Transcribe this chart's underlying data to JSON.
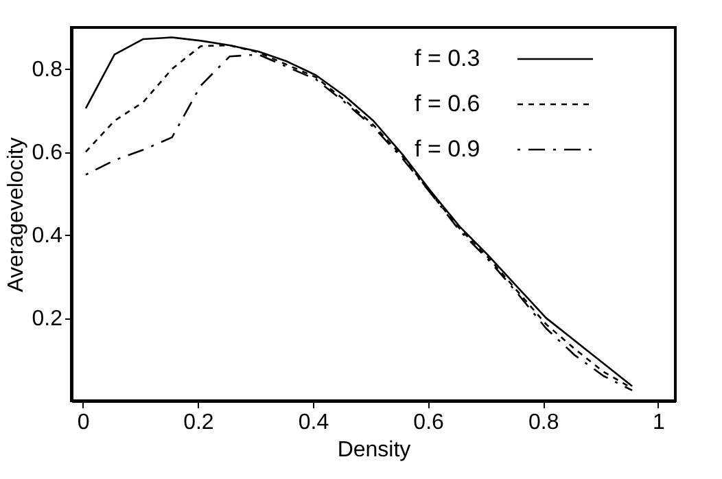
{
  "chart_data": {
    "type": "line",
    "xlabel": "Density",
    "ylabel": "Averagevelocity",
    "x": [
      0.005,
      0.055,
      0.105,
      0.155,
      0.205,
      0.255,
      0.305,
      0.355,
      0.405,
      0.455,
      0.505,
      0.555,
      0.605,
      0.655,
      0.705,
      0.755,
      0.805,
      0.855,
      0.905,
      0.955
    ],
    "series": [
      {
        "name": "f = 0.3",
        "color": "#000000",
        "line_style": "solid",
        "values": [
          0.705,
          0.835,
          0.872,
          0.876,
          0.868,
          0.857,
          0.842,
          0.818,
          0.785,
          0.735,
          0.675,
          0.595,
          0.505,
          0.42,
          0.35,
          0.275,
          0.2,
          0.145,
          0.09,
          0.035
        ]
      },
      {
        "name": "f = 0.6",
        "color": "#000000",
        "line_style": "dashed",
        "values": [
          0.6,
          0.675,
          0.72,
          0.8,
          0.855,
          0.857,
          0.84,
          0.81,
          0.78,
          0.725,
          0.665,
          0.59,
          0.5,
          0.415,
          0.345,
          0.265,
          0.185,
          0.125,
          0.07,
          0.03
        ]
      },
      {
        "name": "f = 0.9",
        "color": "#000000",
        "line_style": "dashdot",
        "values": [
          0.545,
          0.58,
          0.605,
          0.635,
          0.76,
          0.83,
          0.835,
          0.805,
          0.775,
          0.72,
          0.66,
          0.585,
          0.5,
          0.41,
          0.34,
          0.26,
          0.175,
          0.11,
          0.06,
          0.025
        ]
      }
    ],
    "xlim": [
      -0.02,
      1.03
    ],
    "ylim": [
      0.0,
      0.9
    ],
    "xticks": [
      0,
      0.2,
      0.4,
      0.6,
      0.8,
      1
    ],
    "yticks": [
      0.2,
      0.4,
      0.6,
      0.8
    ],
    "grid": false,
    "legend": "top right",
    "marker": "none"
  }
}
